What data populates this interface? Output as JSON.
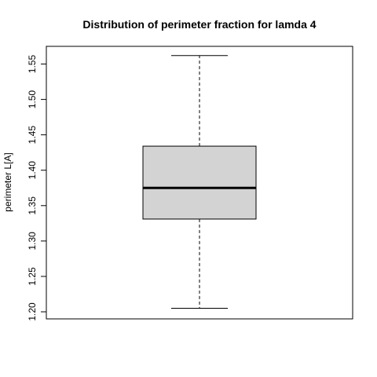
{
  "chart_data": {
    "type": "boxplot",
    "title": "Distribution of perimeter fraction for lamda 4",
    "xlabel": "",
    "ylabel": "perimeter L[A]",
    "ylim": [
      1.19,
      1.575
    ],
    "yticks": [
      1.2,
      1.25,
      1.3,
      1.35,
      1.4,
      1.45,
      1.5,
      1.55
    ],
    "ytick_labels": [
      "1.20",
      "1.25",
      "1.30",
      "1.35",
      "1.40",
      "1.45",
      "1.50",
      "1.55"
    ],
    "box": {
      "min": 1.205,
      "q1": 1.331,
      "median": 1.375,
      "q3": 1.434,
      "max": 1.562
    },
    "grid": false,
    "colors": {
      "box_fill": "#d3d3d3",
      "stroke": "#000000",
      "background": "#ffffff"
    }
  }
}
